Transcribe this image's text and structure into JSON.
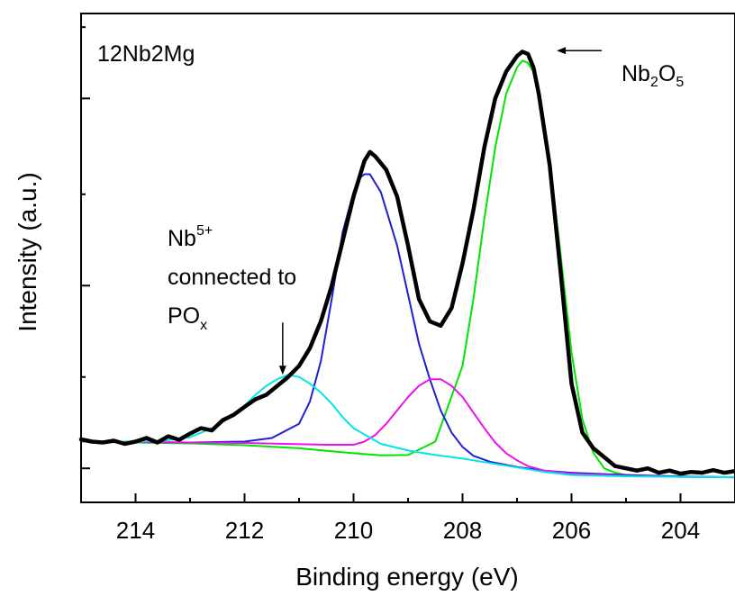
{
  "chart_data": {
    "type": "line",
    "xlabel": "Binding energy (eV)",
    "ylabel": "Intensity (a.u.)",
    "xlim": [
      215,
      203
    ],
    "x_reversed": true,
    "x_ticks": [
      214,
      212,
      210,
      208,
      206,
      204
    ],
    "ylim": [
      0,
      1
    ],
    "y_tick_labels_shown": false,
    "grid": false,
    "legend": "none",
    "sample_label": "12Nb2Mg",
    "annotations": {
      "nb2o5": {
        "base": "Nb",
        "sub1": "2",
        "mid": "O",
        "sub2": "5",
        "x": 206.8,
        "y": 0.955
      },
      "nb5": {
        "line1_base": "Nb",
        "line1_sup": "5+",
        "line2": "connected to",
        "line3_base": "PO",
        "line3_sub": "x",
        "x": 211.3,
        "y": 0.25
      }
    },
    "series": [
      {
        "role": "measured",
        "color": "#000000",
        "x": [
          215.0,
          214.8,
          214.6,
          214.4,
          214.2,
          214.0,
          213.8,
          213.6,
          213.4,
          213.2,
          213.0,
          212.8,
          212.6,
          212.4,
          212.2,
          212.0,
          211.8,
          211.6,
          211.4,
          211.2,
          211.0,
          210.8,
          210.6,
          210.4,
          210.2,
          210.0,
          209.8,
          209.7,
          209.6,
          209.4,
          209.2,
          209.0,
          208.8,
          208.6,
          208.4,
          208.2,
          208.0,
          207.8,
          207.6,
          207.4,
          207.2,
          207.0,
          206.9,
          206.8,
          206.7,
          206.6,
          206.4,
          206.2,
          206.0,
          205.8,
          205.6,
          205.4,
          205.2,
          205.0,
          204.8,
          204.6,
          204.4,
          204.2,
          204.0,
          203.8,
          203.6,
          203.4,
          203.2,
          203.0
        ],
        "y": [
          0.105,
          0.1,
          0.098,
          0.102,
          0.095,
          0.1,
          0.108,
          0.098,
          0.112,
          0.104,
          0.118,
          0.13,
          0.125,
          0.148,
          0.16,
          0.178,
          0.195,
          0.205,
          0.225,
          0.245,
          0.27,
          0.31,
          0.37,
          0.45,
          0.55,
          0.65,
          0.73,
          0.75,
          0.74,
          0.71,
          0.65,
          0.54,
          0.42,
          0.37,
          0.36,
          0.4,
          0.5,
          0.62,
          0.76,
          0.87,
          0.93,
          0.965,
          0.975,
          0.97,
          0.94,
          0.88,
          0.72,
          0.48,
          0.23,
          0.12,
          0.085,
          0.065,
          0.045,
          0.04,
          0.035,
          0.04,
          0.03,
          0.035,
          0.028,
          0.032,
          0.03,
          0.036,
          0.03,
          0.034
        ]
      },
      {
        "role": "fit",
        "color": "#00e400",
        "x": [
          215.0,
          214.0,
          213.0,
          212.0,
          211.0,
          210.0,
          209.5,
          209.0,
          208.5,
          208.0,
          207.8,
          207.6,
          207.4,
          207.2,
          207.0,
          206.9,
          206.8,
          206.7,
          206.6,
          206.4,
          206.2,
          206.0,
          205.8,
          205.6,
          205.4,
          205.2,
          205.0,
          204.5,
          204.0,
          203.0
        ],
        "y": [
          0.1,
          0.098,
          0.096,
          0.092,
          0.085,
          0.074,
          0.069,
          0.07,
          0.1,
          0.27,
          0.42,
          0.6,
          0.76,
          0.88,
          0.94,
          0.955,
          0.95,
          0.93,
          0.88,
          0.73,
          0.52,
          0.3,
          0.15,
          0.075,
          0.04,
          0.03,
          0.025,
          0.022,
          0.021,
          0.02
        ]
      },
      {
        "role": "fit",
        "color": "#1f1fd6",
        "x": [
          215.0,
          213.0,
          212.0,
          211.5,
          211.0,
          210.8,
          210.6,
          210.4,
          210.2,
          210.0,
          209.9,
          209.8,
          209.7,
          209.6,
          209.5,
          209.4,
          209.2,
          209.0,
          208.8,
          208.6,
          208.4,
          208.2,
          208.0,
          207.8,
          207.5,
          207.0,
          206.5,
          206.0,
          205.0,
          204.0,
          203.0
        ],
        "y": [
          0.1,
          0.098,
          0.1,
          0.108,
          0.14,
          0.19,
          0.28,
          0.42,
          0.57,
          0.66,
          0.69,
          0.7,
          0.7,
          0.68,
          0.66,
          0.62,
          0.54,
          0.43,
          0.32,
          0.24,
          0.17,
          0.12,
          0.088,
          0.068,
          0.055,
          0.043,
          0.035,
          0.03,
          0.025,
          0.022,
          0.02
        ]
      },
      {
        "role": "fit",
        "color": "#ee11ee",
        "x": [
          215.0,
          212.0,
          210.5,
          210.0,
          209.8,
          209.6,
          209.4,
          209.2,
          209.0,
          208.8,
          208.6,
          208.4,
          208.2,
          208.0,
          207.8,
          207.6,
          207.4,
          207.2,
          207.0,
          206.8,
          206.5,
          206.0,
          205.0,
          204.0,
          203.0
        ],
        "y": [
          0.1,
          0.097,
          0.093,
          0.093,
          0.1,
          0.115,
          0.14,
          0.17,
          0.2,
          0.225,
          0.24,
          0.24,
          0.225,
          0.2,
          0.165,
          0.13,
          0.098,
          0.074,
          0.058,
          0.045,
          0.035,
          0.028,
          0.023,
          0.021,
          0.02
        ]
      },
      {
        "role": "fit",
        "color": "#00e5e5",
        "x": [
          215.0,
          214.0,
          213.5,
          213.0,
          212.5,
          212.0,
          211.8,
          211.6,
          211.4,
          211.2,
          211.0,
          210.8,
          210.6,
          210.4,
          210.2,
          210.0,
          209.5,
          209.0,
          208.5,
          208.0,
          207.5,
          207.0,
          206.5,
          206.0,
          205.0,
          204.0,
          203.0
        ],
        "y": [
          0.1,
          0.1,
          0.102,
          0.11,
          0.135,
          0.18,
          0.205,
          0.225,
          0.24,
          0.25,
          0.245,
          0.23,
          0.21,
          0.185,
          0.155,
          0.13,
          0.095,
          0.08,
          0.07,
          0.062,
          0.052,
          0.042,
          0.032,
          0.025,
          0.022,
          0.021,
          0.02
        ]
      }
    ]
  }
}
